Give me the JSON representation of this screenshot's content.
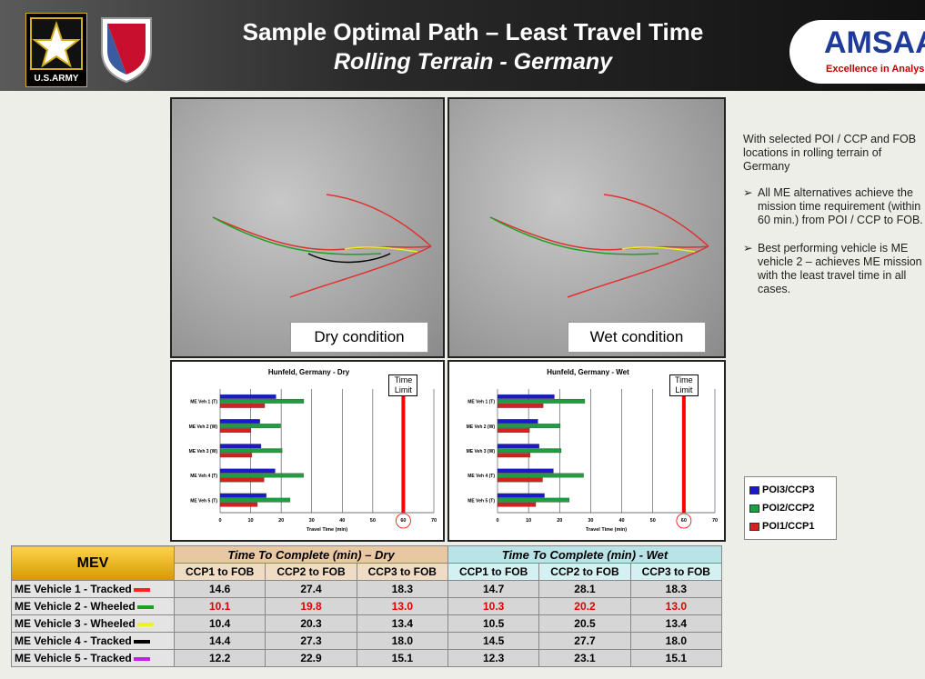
{
  "header": {
    "title": "Sample Optimal Path – Least Travel Time",
    "subtitle": "Rolling Terrain - Germany",
    "left_logo_text": "U.S.ARMY",
    "right_logo_text": "AMSAA",
    "right_logo_tagline": "Excellence in Analysis"
  },
  "maps": [
    {
      "caption": "Dry condition"
    },
    {
      "caption": "Wet condition"
    }
  ],
  "notes": {
    "intro": "With selected POI / CCP and FOB locations in rolling terrain of Germany",
    "bullets": [
      "All ME alternatives  achieve the mission time requirement (within 60 min.) from POI / CCP to FOB.",
      "Best performing vehicle is ME vehicle 2 – achieves ME mission with the least  travel time in all cases."
    ]
  },
  "chart_data": [
    {
      "type": "bar",
      "orientation": "horizontal",
      "title": "Hunfeld, Germany - Dry",
      "categories": [
        "ME Veh 1 (T)",
        "ME Veh 2 (W)",
        "ME Veh 3 (W)",
        "ME Veh 4 (T)",
        "ME Veh 5 (T)"
      ],
      "series": [
        {
          "name": "POI3/CCP3",
          "color": "#1a1acc",
          "values": [
            18.3,
            13.0,
            13.4,
            18.0,
            15.1
          ]
        },
        {
          "name": "POI2/CCP2",
          "color": "#1e9e3e",
          "values": [
            27.4,
            19.8,
            20.3,
            27.3,
            22.9
          ]
        },
        {
          "name": "POI1/CCP1",
          "color": "#d42020",
          "values": [
            14.6,
            10.1,
            10.4,
            14.4,
            12.2
          ]
        }
      ],
      "xlim": [
        0,
        70
      ],
      "xticks": [
        0,
        10,
        20,
        30,
        40,
        50,
        60,
        70
      ],
      "xlabel": "Travel Time  (min)",
      "grid": true,
      "annotation": {
        "text": "Time Limit",
        "value": 60,
        "color": "#ff0000"
      }
    },
    {
      "type": "bar",
      "orientation": "horizontal",
      "title": "Hunfeld, Germany - Wet",
      "categories": [
        "ME Veh 1 (T)",
        "ME Veh 2 (W)",
        "ME Veh 3 (W)",
        "ME Veh 4 (T)",
        "ME Veh 5 (T)"
      ],
      "series": [
        {
          "name": "POI3/CCP3",
          "color": "#1a1acc",
          "values": [
            18.3,
            13.0,
            13.4,
            18.0,
            15.1
          ]
        },
        {
          "name": "POI2/CCP2",
          "color": "#1e9e3e",
          "values": [
            28.1,
            20.2,
            20.5,
            27.7,
            23.1
          ]
        },
        {
          "name": "POI1/CCP1",
          "color": "#d42020",
          "values": [
            14.7,
            10.3,
            10.5,
            14.5,
            12.3
          ]
        }
      ],
      "xlim": [
        0,
        70
      ],
      "xticks": [
        0,
        10,
        20,
        30,
        40,
        50,
        60,
        70
      ],
      "xlabel": "Travel Time (min)",
      "grid": true,
      "annotation": {
        "text": "Time Limit",
        "value": 60,
        "color": "#ff0000"
      }
    }
  ],
  "table": {
    "corner": "MEV",
    "groups": [
      "Time To Complete (min) – Dry",
      "Time To Complete (min) - Wet"
    ],
    "columns": [
      "CCP1 to FOB",
      "CCP2 to FOB",
      "CCP3 to FOB",
      "CCP1 to FOB",
      "CCP2 to FOB",
      "CCP3 to FOB"
    ],
    "rows": [
      {
        "name": "ME Vehicle 1 - Tracked",
        "line_color": "#ff2020",
        "cells": [
          "14.6",
          "27.4",
          "18.3",
          "14.7",
          "28.1",
          "18.3"
        ]
      },
      {
        "name": "ME Vehicle 2 - Wheeled",
        "line_color": "#20a020",
        "highlight": true,
        "cells": [
          "10.1",
          "19.8",
          "13.0",
          "10.3",
          "20.2",
          "13.0"
        ]
      },
      {
        "name": "ME Vehicle 3 - Wheeled",
        "line_color": "#f0f020",
        "cells": [
          "10.4",
          "20.3",
          "13.4",
          "10.5",
          "20.5",
          "13.4"
        ]
      },
      {
        "name": "ME Vehicle 4 - Tracked",
        "line_color": "#000000",
        "cells": [
          "14.4",
          "27.3",
          "18.0",
          "14.5",
          "27.7",
          "18.0"
        ]
      },
      {
        "name": "ME Vehicle 5 - Tracked",
        "line_color": "#c020e0",
        "cells": [
          "12.2",
          "22.9",
          "15.1",
          "12.3",
          "23.1",
          "15.1"
        ]
      }
    ]
  }
}
